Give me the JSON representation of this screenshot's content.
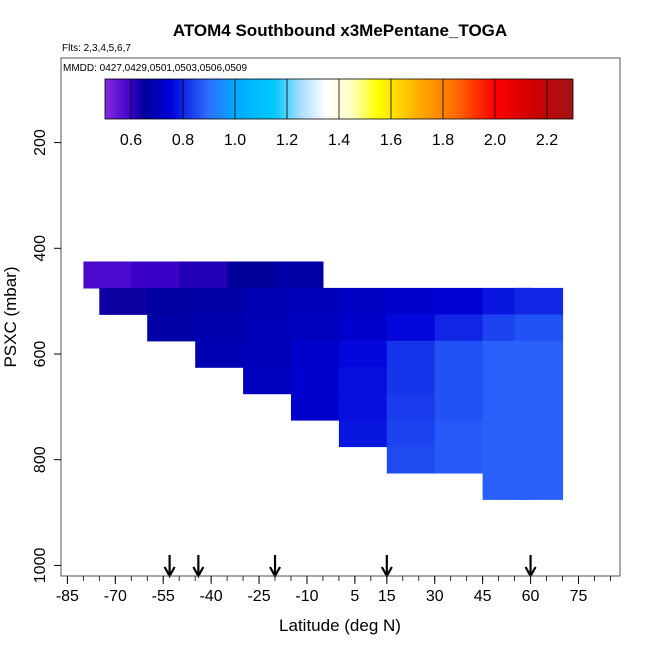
{
  "chart_data": {
    "type": "heatmap",
    "title": "ATOM4 Southbound x3MePentane_TOGA",
    "flights_label": "Flts: 2,3,4,5,6,7",
    "dates_label": "MMDD: 0427,0429,0501,0503,0506,0509",
    "xlabel": "Latitude (deg N)",
    "ylabel": "PSXC (mbar)",
    "xlim": [
      -87,
      88
    ],
    "ylim": [
      1020,
      40
    ],
    "x_ticks": [
      -85,
      -70,
      -55,
      -40,
      -25,
      -10,
      5,
      15,
      30,
      45,
      60,
      75
    ],
    "y_ticks": [
      200,
      400,
      600,
      800,
      1000
    ],
    "colorbar": {
      "range": [
        0.5,
        2.3
      ],
      "ticks": [
        0.6,
        0.8,
        1.0,
        1.2,
        1.4,
        1.6,
        1.8,
        2.0,
        2.2
      ],
      "tick_labels": [
        "0.6",
        "0.8",
        "1.0",
        "1.2",
        "1.4",
        "1.6",
        "1.8",
        "2.0",
        "2.2"
      ],
      "stops": [
        {
          "v": 0.5,
          "c": "#8a2be2"
        },
        {
          "v": 0.6,
          "c": "#3a00c8"
        },
        {
          "v": 0.65,
          "c": "#00009a"
        },
        {
          "v": 0.75,
          "c": "#0000d8"
        },
        {
          "v": 0.9,
          "c": "#2f6fff"
        },
        {
          "v": 1.0,
          "c": "#00aaff"
        },
        {
          "v": 1.15,
          "c": "#00c8ff"
        },
        {
          "v": 1.25,
          "c": "#a8dcff"
        },
        {
          "v": 1.35,
          "c": "#ffffff"
        },
        {
          "v": 1.45,
          "c": "#ffffc0"
        },
        {
          "v": 1.55,
          "c": "#ffff00"
        },
        {
          "v": 1.7,
          "c": "#ffb000"
        },
        {
          "v": 1.85,
          "c": "#ff6a00"
        },
        {
          "v": 2.0,
          "c": "#ff0000"
        },
        {
          "v": 2.15,
          "c": "#cc0000"
        },
        {
          "v": 2.3,
          "c": "#a01515"
        }
      ]
    },
    "flight_latitudes": [
      -53,
      -44,
      -20,
      15,
      60
    ],
    "cell_lat_width": 15,
    "cell_p_height": 50,
    "cells": [
      {
        "lat": -72.5,
        "p": 450,
        "v": 0.58
      },
      {
        "lat": -57.5,
        "p": 450,
        "v": 0.6
      },
      {
        "lat": -42.5,
        "p": 450,
        "v": 0.62
      },
      {
        "lat": -27.5,
        "p": 450,
        "v": 0.65
      },
      {
        "lat": -12.5,
        "p": 450,
        "v": 0.67
      },
      {
        "lat": -67.5,
        "p": 500,
        "v": 0.64
      },
      {
        "lat": -52.5,
        "p": 500,
        "v": 0.66
      },
      {
        "lat": -37.5,
        "p": 500,
        "v": 0.67
      },
      {
        "lat": -22.5,
        "p": 500,
        "v": 0.69
      },
      {
        "lat": -7.5,
        "p": 500,
        "v": 0.7
      },
      {
        "lat": 7.5,
        "p": 500,
        "v": 0.72
      },
      {
        "lat": 22.5,
        "p": 500,
        "v": 0.73
      },
      {
        "lat": 37.5,
        "p": 500,
        "v": 0.74
      },
      {
        "lat": 52.5,
        "p": 500,
        "v": 0.78
      },
      {
        "lat": 62.5,
        "p": 500,
        "v": 0.8
      },
      {
        "lat": -52.5,
        "p": 550,
        "v": 0.67
      },
      {
        "lat": -37.5,
        "p": 550,
        "v": 0.68
      },
      {
        "lat": -22.5,
        "p": 550,
        "v": 0.7
      },
      {
        "lat": -7.5,
        "p": 550,
        "v": 0.71
      },
      {
        "lat": 7.5,
        "p": 550,
        "v": 0.73
      },
      {
        "lat": 22.5,
        "p": 550,
        "v": 0.76
      },
      {
        "lat": 37.5,
        "p": 550,
        "v": 0.8
      },
      {
        "lat": 52.5,
        "p": 550,
        "v": 0.84
      },
      {
        "lat": 62.5,
        "p": 550,
        "v": 0.86
      },
      {
        "lat": -37.5,
        "p": 600,
        "v": 0.69
      },
      {
        "lat": -22.5,
        "p": 600,
        "v": 0.7
      },
      {
        "lat": -7.5,
        "p": 600,
        "v": 0.73
      },
      {
        "lat": 7.5,
        "p": 600,
        "v": 0.76
      },
      {
        "lat": 22.5,
        "p": 600,
        "v": 0.82
      },
      {
        "lat": 37.5,
        "p": 600,
        "v": 0.86
      },
      {
        "lat": 52.5,
        "p": 600,
        "v": 0.88
      },
      {
        "lat": 62.5,
        "p": 600,
        "v": 0.88
      },
      {
        "lat": -22.5,
        "p": 650,
        "v": 0.71
      },
      {
        "lat": -7.5,
        "p": 650,
        "v": 0.73
      },
      {
        "lat": 7.5,
        "p": 650,
        "v": 0.77
      },
      {
        "lat": 22.5,
        "p": 650,
        "v": 0.82
      },
      {
        "lat": 37.5,
        "p": 650,
        "v": 0.86
      },
      {
        "lat": 52.5,
        "p": 650,
        "v": 0.88
      },
      {
        "lat": 62.5,
        "p": 650,
        "v": 0.88
      },
      {
        "lat": -7.5,
        "p": 700,
        "v": 0.73
      },
      {
        "lat": 7.5,
        "p": 700,
        "v": 0.77
      },
      {
        "lat": 22.5,
        "p": 700,
        "v": 0.83
      },
      {
        "lat": 37.5,
        "p": 700,
        "v": 0.86
      },
      {
        "lat": 52.5,
        "p": 700,
        "v": 0.88
      },
      {
        "lat": 62.5,
        "p": 700,
        "v": 0.88
      },
      {
        "lat": 7.5,
        "p": 750,
        "v": 0.78
      },
      {
        "lat": 22.5,
        "p": 750,
        "v": 0.84
      },
      {
        "lat": 37.5,
        "p": 750,
        "v": 0.87
      },
      {
        "lat": 52.5,
        "p": 750,
        "v": 0.88
      },
      {
        "lat": 62.5,
        "p": 750,
        "v": 0.88
      },
      {
        "lat": 22.5,
        "p": 800,
        "v": 0.85
      },
      {
        "lat": 37.5,
        "p": 800,
        "v": 0.87
      },
      {
        "lat": 52.5,
        "p": 800,
        "v": 0.88
      },
      {
        "lat": 62.5,
        "p": 800,
        "v": 0.88
      },
      {
        "lat": 52.5,
        "p": 850,
        "v": 0.88
      },
      {
        "lat": 62.5,
        "p": 850,
        "v": 0.88
      }
    ]
  }
}
